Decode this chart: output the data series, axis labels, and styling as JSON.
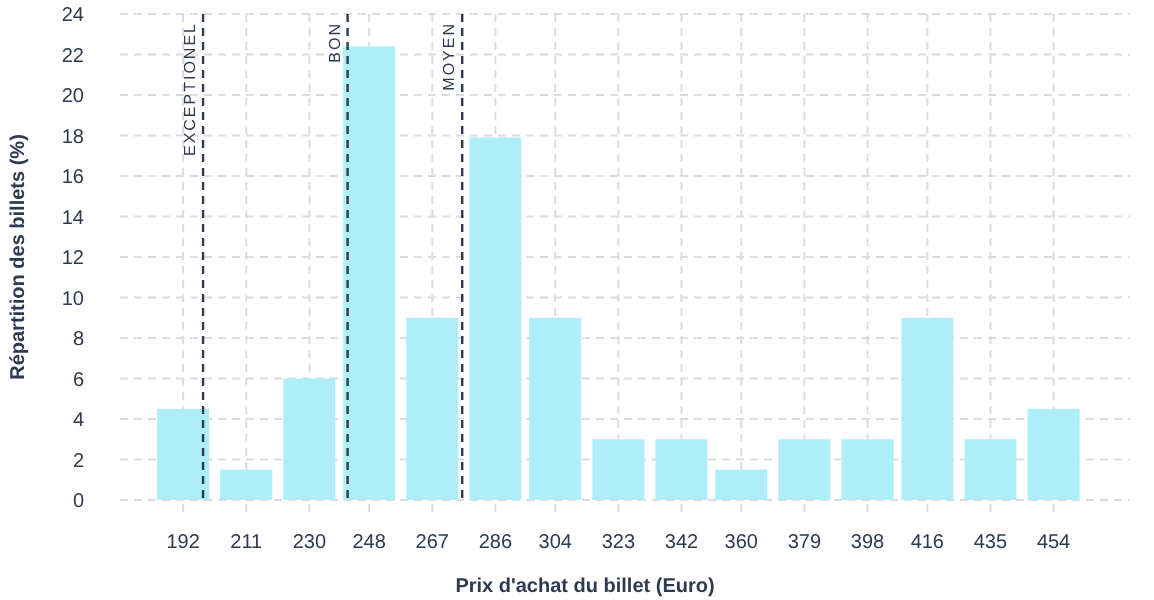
{
  "chart_data": {
    "type": "bar",
    "xlabel": "Prix d'achat du billet (Euro)",
    "ylabel": "Répartition des billets (%)",
    "x": [
      192,
      211,
      230,
      248,
      267,
      286,
      304,
      323,
      342,
      360,
      379,
      398,
      416,
      435,
      454
    ],
    "values": [
      4.5,
      1.5,
      6,
      22.4,
      9,
      17.9,
      9,
      3,
      3,
      1.5,
      3,
      3,
      9,
      3,
      4.5
    ],
    "color": "#aeeef8",
    "xlim": [
      173,
      477
    ],
    "xticks": [
      192,
      211,
      230,
      248,
      267,
      286,
      304,
      323,
      342,
      360,
      379,
      398,
      416,
      435,
      454
    ],
    "ylim": [
      0,
      24
    ],
    "yticks": [
      0,
      2,
      4,
      6,
      8,
      10,
      12,
      14,
      16,
      18,
      20,
      22,
      24
    ],
    "grid": true,
    "ref_lines": [
      {
        "axis": "x",
        "value": 198,
        "label": "EXCEPTIONEL",
        "color": "#2d3a4f",
        "line_style": "dashed"
      },
      {
        "axis": "x",
        "value": 241.5,
        "label": "BON",
        "color": "#2d3a4f",
        "line_style": "dashed"
      },
      {
        "axis": "x",
        "value": 276,
        "label": "MOYEN",
        "color": "#2d3a4f",
        "line_style": "dashed"
      }
    ]
  }
}
